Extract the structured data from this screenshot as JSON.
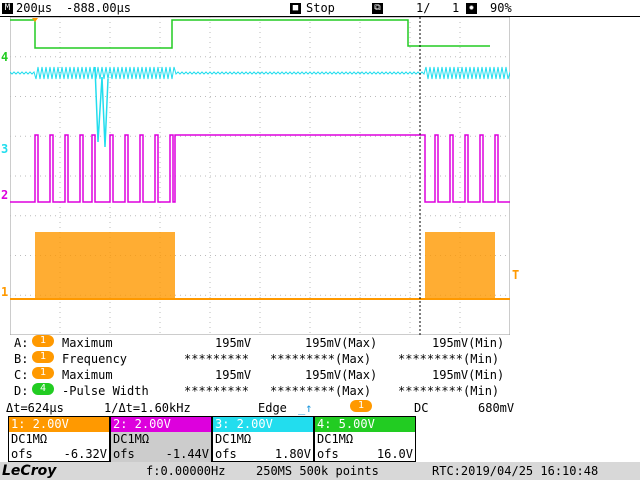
{
  "topbar": {
    "timebase": "200µs",
    "delay": "-888.00µs",
    "state": "Stop",
    "page": "1/",
    "page_total": "1",
    "zoom": "90%"
  },
  "channels_markers": {
    "ch4": "4",
    "ch3": "3",
    "ch2": "2",
    "ch1": "1",
    "trigger_t": "T"
  },
  "colors": {
    "ch1": "#ff9900",
    "ch2": "#dd00dd",
    "ch3": "#22ddee",
    "ch4": "#22cc22",
    "grid": "#bbbbbb"
  },
  "measurements": [
    {
      "slot": "A:",
      "ch": "1",
      "name": "Maximum",
      "cur": "195mV",
      "max": "195mV(Max)",
      "min": "195mV(Min)"
    },
    {
      "slot": "B:",
      "ch": "1",
      "name": "Frequency",
      "cur": "*********",
      "max": "*********(Max)",
      "min": "*********(Min)"
    },
    {
      "slot": "C:",
      "ch": "1",
      "name": "Maximum",
      "cur": "195mV",
      "max": "195mV(Max)",
      "min": "195mV(Min)"
    },
    {
      "slot": "D:",
      "ch": "4",
      "name": "-Pulse Width",
      "cur": "*********",
      "max": "*********(Max)",
      "min": "*********(Min)"
    }
  ],
  "cursor": {
    "dt": "Δt=624µs",
    "inv_dt": "1/Δt=1.60kHz",
    "trig_mode": "Edge",
    "trig_ch": "1",
    "coupling": "DC",
    "level": "680mV"
  },
  "channel_boxes": [
    {
      "header": "1: 2.00V",
      "coupling": "DC1MΩ",
      "ofs_label": "ofs",
      "ofs": "-6.32V"
    },
    {
      "header": "2: 2.00V",
      "coupling": "DC1MΩ",
      "ofs_label": "ofs",
      "ofs": "-1.44V"
    },
    {
      "header": "3: 2.00V",
      "coupling": "DC1MΩ",
      "ofs_label": "ofs",
      "ofs": "1.80V"
    },
    {
      "header": "4: 5.00V",
      "coupling": "DC1MΩ",
      "ofs_label": "ofs",
      "ofs": "16.0V"
    }
  ],
  "bottom": {
    "brand": "LeCroy",
    "freq": "f:0.00000Hz",
    "sampling": "250MS 500k points",
    "rtc": "RTC:2019/04/25 16:10:48"
  }
}
